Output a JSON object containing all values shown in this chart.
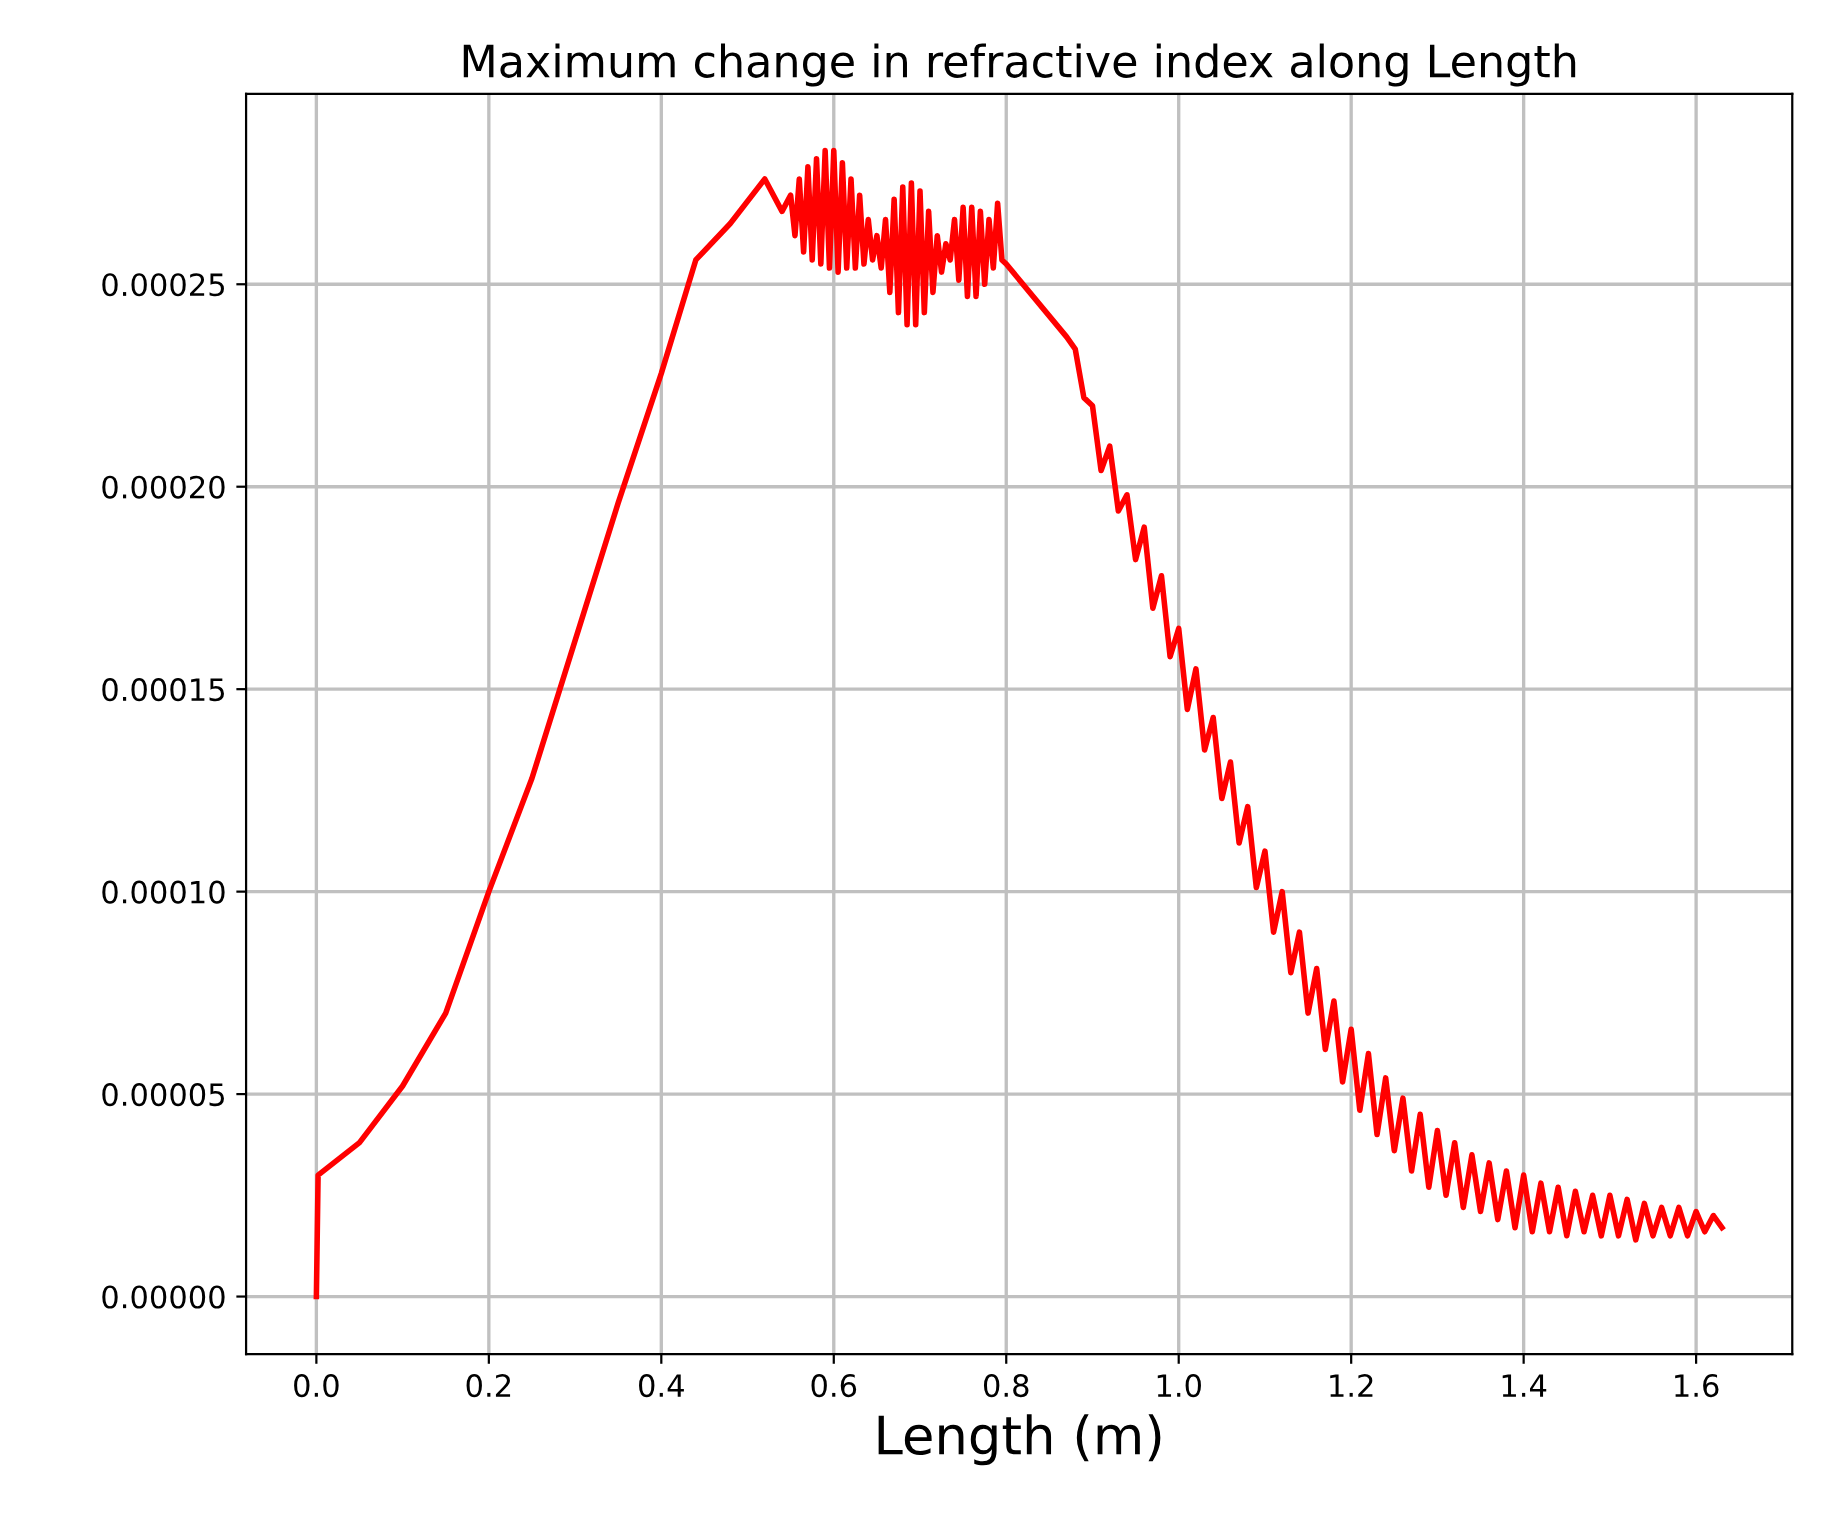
{
  "chart_data": {
    "type": "line",
    "title": "Maximum change in refractive index along Length",
    "xlabel": "Length (m)",
    "xlim": [
      -0.0815,
      1.7115
    ],
    "ylim": [
      -1.42e-05,
      0.000297
    ],
    "xticks": [
      {
        "value": 0,
        "label": "0.0"
      },
      {
        "value": 0.2,
        "label": "0.2"
      },
      {
        "value": 0.4,
        "label": "0.4"
      },
      {
        "value": 0.6,
        "label": "0.6"
      },
      {
        "value": 0.8,
        "label": "0.8"
      },
      {
        "value": 1.0,
        "label": "1.0"
      },
      {
        "value": 1.2,
        "label": "1.2"
      },
      {
        "value": 1.4,
        "label": "1.4"
      },
      {
        "value": 1.6,
        "label": "1.6"
      }
    ],
    "yticks": [
      {
        "value": 0,
        "label": "0.00000"
      },
      {
        "value": 5e-05,
        "label": "0.00005"
      },
      {
        "value": 0.0001,
        "label": "0.00010"
      },
      {
        "value": 0.00015,
        "label": "0.00015"
      },
      {
        "value": 0.0002,
        "label": "0.00020"
      },
      {
        "value": 0.00025,
        "label": "0.00025"
      }
    ],
    "grid": true,
    "marker": "none",
    "line_style": "solid",
    "series": [
      {
        "color": "#ff0000",
        "x": [
          0,
          0.002,
          0.05,
          0.1,
          0.15,
          0.2,
          0.25,
          0.3,
          0.35,
          0.4,
          0.44,
          0.48,
          0.52,
          0.54,
          0.55,
          0.555,
          0.56,
          0.565,
          0.57,
          0.575,
          0.58,
          0.585,
          0.59,
          0.595,
          0.6,
          0.605,
          0.61,
          0.615,
          0.62,
          0.625,
          0.63,
          0.635,
          0.64,
          0.645,
          0.65,
          0.655,
          0.66,
          0.665,
          0.67,
          0.675,
          0.68,
          0.685,
          0.69,
          0.695,
          0.7,
          0.705,
          0.71,
          0.715,
          0.72,
          0.725,
          0.73,
          0.735,
          0.74,
          0.745,
          0.75,
          0.755,
          0.76,
          0.765,
          0.77,
          0.775,
          0.78,
          0.785,
          0.79,
          0.795,
          0.8,
          0.87,
          0.88,
          0.89,
          0.9,
          0.91,
          0.92,
          0.93,
          0.94,
          0.95,
          0.96,
          0.97,
          0.98,
          0.99,
          1.0,
          1.01,
          1.02,
          1.03,
          1.04,
          1.05,
          1.06,
          1.07,
          1.08,
          1.09,
          1.1,
          1.11,
          1.12,
          1.13,
          1.14,
          1.15,
          1.16,
          1.17,
          1.18,
          1.19,
          1.2,
          1.21,
          1.22,
          1.23,
          1.24,
          1.25,
          1.26,
          1.27,
          1.28,
          1.29,
          1.3,
          1.31,
          1.32,
          1.33,
          1.34,
          1.35,
          1.36,
          1.37,
          1.38,
          1.39,
          1.4,
          1.41,
          1.42,
          1.43,
          1.44,
          1.45,
          1.46,
          1.47,
          1.48,
          1.49,
          1.5,
          1.51,
          1.52,
          1.53,
          1.54,
          1.55,
          1.56,
          1.57,
          1.58,
          1.59,
          1.6,
          1.61,
          1.62,
          1.63
        ],
        "values": [
          0,
          3e-05,
          3.8e-05,
          5.2e-05,
          7e-05,
          0.0001,
          0.000128,
          0.000162,
          0.000196,
          0.000228,
          0.000256,
          0.000265,
          0.000276,
          0.000268,
          0.000272,
          0.000262,
          0.000276,
          0.000258,
          0.000279,
          0.000256,
          0.000281,
          0.000255,
          0.000283,
          0.000254,
          0.000283,
          0.000253,
          0.00028,
          0.000254,
          0.000276,
          0.000254,
          0.000272,
          0.000255,
          0.000266,
          0.000256,
          0.000262,
          0.000254,
          0.000266,
          0.000248,
          0.000271,
          0.000243,
          0.000274,
          0.00024,
          0.000275,
          0.00024,
          0.000273,
          0.000243,
          0.000268,
          0.000248,
          0.000262,
          0.000253,
          0.00026,
          0.000256,
          0.000266,
          0.000251,
          0.000269,
          0.000247,
          0.000269,
          0.000247,
          0.000268,
          0.00025,
          0.000266,
          0.000254,
          0.00027,
          0.000256,
          0.000255,
          0.000237,
          0.000234,
          0.000222,
          0.00022,
          0.000204,
          0.00021,
          0.000194,
          0.000198,
          0.000182,
          0.00019,
          0.00017,
          0.000178,
          0.000158,
          0.000165,
          0.000145,
          0.000155,
          0.000135,
          0.000143,
          0.000123,
          0.000132,
          0.000112,
          0.000121,
          0.000101,
          0.00011,
          9e-05,
          0.0001,
          8e-05,
          9e-05,
          7e-05,
          8.1e-05,
          6.1e-05,
          7.3e-05,
          5.3e-05,
          6.6e-05,
          4.6e-05,
          6e-05,
          4e-05,
          5.4e-05,
          3.6e-05,
          4.9e-05,
          3.1e-05,
          4.5e-05,
          2.7e-05,
          4.1e-05,
          2.5e-05,
          3.8e-05,
          2.2e-05,
          3.5e-05,
          2.1e-05,
          3.3e-05,
          1.9e-05,
          3.1e-05,
          1.7e-05,
          3e-05,
          1.6e-05,
          2.8e-05,
          1.6e-05,
          2.7e-05,
          1.5e-05,
          2.6e-05,
          1.6e-05,
          2.5e-05,
          1.5e-05,
          2.5e-05,
          1.5e-05,
          2.4e-05,
          1.4e-05,
          2.3e-05,
          1.5e-05,
          2.2e-05,
          1.5e-05,
          2.2e-05,
          1.5e-05,
          2.1e-05,
          1.6e-05,
          2e-05,
          1.7e-05
        ]
      }
    ]
  }
}
